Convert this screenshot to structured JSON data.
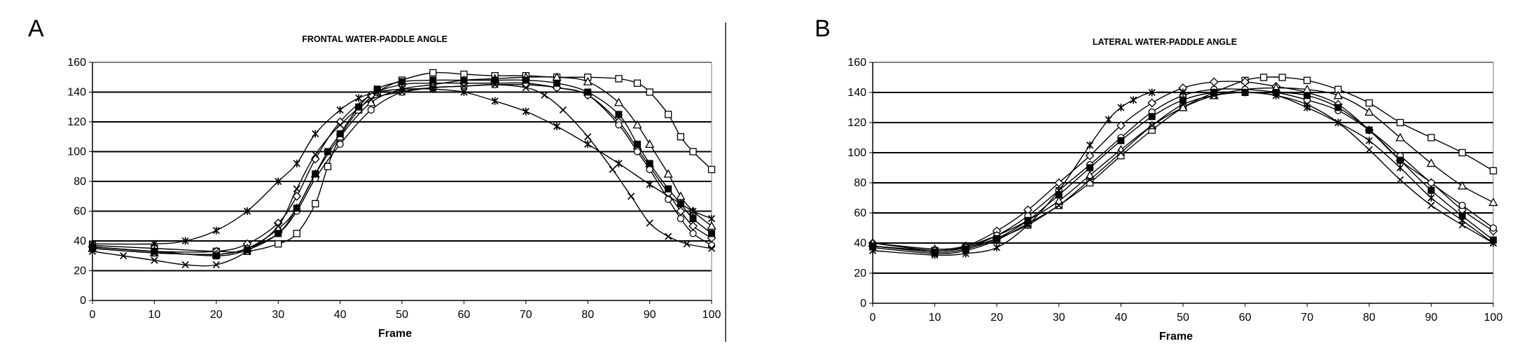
{
  "panels": [
    {
      "letter": "A",
      "chart_data": {
        "type": "line",
        "title": "FRONTAL WATER-PADDLE ANGLE",
        "xlabel": "Frame",
        "ylabel": "",
        "xlim": [
          0,
          100
        ],
        "ylim": [
          0,
          160
        ],
        "xticks": [
          0,
          10,
          20,
          30,
          40,
          50,
          60,
          70,
          80,
          90,
          100
        ],
        "yticks": [
          0,
          20,
          40,
          60,
          80,
          100,
          120,
          140,
          160
        ],
        "grid": "horizontal",
        "legend": "none",
        "series": [
          {
            "marker": "square",
            "x": [
              0,
              10,
              20,
              25,
              30,
              33,
              36,
              38,
              40,
              43,
              46,
              50,
              55,
              60,
              65,
              70,
              75,
              80,
              85,
              88,
              90,
              93,
              95,
              97,
              100
            ],
            "y": [
              37,
              35,
              33,
              33,
              38,
              45,
              65,
              90,
              110,
              128,
              140,
              148,
              153,
              152,
              151,
              151,
              150,
              150,
              149,
              146,
              140,
              125,
              110,
              100,
              88
            ]
          },
          {
            "marker": "diamond",
            "x": [
              0,
              10,
              20,
              25,
              30,
              33,
              36,
              40,
              45,
              50,
              55,
              60,
              65,
              70,
              75,
              80,
              85,
              88,
              90,
              93,
              95,
              97,
              100
            ],
            "y": [
              36,
              33,
              33,
              38,
              52,
              70,
              95,
              120,
              138,
              145,
              146,
              146,
              146,
              146,
              143,
              138,
              120,
              102,
              90,
              72,
              60,
              50,
              42
            ]
          },
          {
            "marker": "triangle",
            "x": [
              0,
              10,
              20,
              25,
              30,
              33,
              36,
              40,
              45,
              50,
              55,
              60,
              65,
              70,
              75,
              80,
              85,
              88,
              90,
              93,
              95,
              97,
              100
            ],
            "y": [
              35,
              32,
              31,
              35,
              48,
              62,
              85,
              110,
              133,
              142,
              145,
              148,
              149,
              150,
              150,
              147,
              133,
              118,
              105,
              85,
              70,
              60,
              50
            ]
          },
          {
            "marker": "circle",
            "x": [
              0,
              10,
              20,
              25,
              30,
              33,
              36,
              40,
              45,
              50,
              55,
              60,
              65,
              70,
              75,
              80,
              85,
              88,
              90,
              93,
              95,
              97,
              100
            ],
            "y": [
              35,
              32,
              31,
              35,
              45,
              60,
              82,
              105,
              128,
              140,
              143,
              144,
              145,
              145,
              143,
              138,
              118,
              100,
              88,
              68,
              55,
              45,
              37
            ]
          },
          {
            "marker": "x",
            "x": [
              0,
              5,
              10,
              15,
              20,
              25,
              30,
              33,
              36,
              40,
              45,
              50,
              55,
              60,
              65,
              70,
              73,
              76,
              80,
              84,
              87,
              90,
              93,
              96,
              100
            ],
            "y": [
              33,
              30,
              27,
              24,
              24,
              33,
              50,
              75,
              98,
              118,
              135,
              140,
              143,
              144,
              145,
              143,
              138,
              128,
              110,
              88,
              70,
              52,
              43,
              38,
              35
            ]
          },
          {
            "marker": "star",
            "x": [
              0,
              10,
              15,
              20,
              25,
              30,
              33,
              36,
              40,
              43,
              46,
              50,
              55,
              60,
              65,
              70,
              75,
              80,
              85,
              90,
              95,
              97,
              100
            ],
            "y": [
              38,
              38,
              40,
              47,
              60,
              80,
              92,
              112,
              128,
              136,
              140,
              142,
              142,
              140,
              134,
              127,
              117,
              105,
              92,
              78,
              65,
              60,
              55
            ]
          },
          {
            "marker": "filled-square",
            "x": [
              0,
              10,
              20,
              25,
              30,
              33,
              36,
              38,
              40,
              43,
              46,
              50,
              55,
              60,
              65,
              70,
              75,
              80,
              85,
              88,
              90,
              93,
              95,
              97,
              100
            ],
            "y": [
              36,
              33,
              30,
              34,
              45,
              62,
              85,
              100,
              112,
              130,
              142,
              147,
              148,
              148,
              148,
              148,
              146,
              140,
              125,
              105,
              92,
              75,
              65,
              55,
              45
            ]
          }
        ]
      }
    },
    {
      "letter": "B",
      "chart_data": {
        "type": "line",
        "title": "LATERAL WATER-PADDLE ANGLE",
        "xlabel": "Frame",
        "ylabel": "",
        "xlim": [
          0,
          100
        ],
        "ylim": [
          0,
          160
        ],
        "xticks": [
          0,
          10,
          20,
          30,
          40,
          50,
          60,
          70,
          80,
          90,
          100
        ],
        "yticks": [
          0,
          20,
          40,
          60,
          80,
          100,
          120,
          140,
          160
        ],
        "grid": "horizontal",
        "legend": "none",
        "series": [
          {
            "marker": "square",
            "x": [
              0,
              10,
              15,
              20,
              25,
              30,
              35,
              40,
              45,
              50,
              55,
              60,
              63,
              66,
              70,
              75,
              80,
              85,
              90,
              95,
              100
            ],
            "y": [
              38,
              35,
              37,
              43,
              52,
              65,
              80,
              98,
              115,
              130,
              140,
              148,
              150,
              150,
              148,
              142,
              133,
              120,
              110,
              100,
              88
            ]
          },
          {
            "marker": "diamond",
            "x": [
              0,
              10,
              15,
              20,
              25,
              30,
              35,
              40,
              45,
              50,
              55,
              60,
              65,
              70,
              75,
              80,
              85,
              90,
              95,
              100
            ],
            "y": [
              40,
              35,
              38,
              48,
              62,
              80,
              98,
              118,
              133,
              143,
              147,
              147,
              144,
              140,
              132,
              115,
              95,
              80,
              62,
              48
            ]
          },
          {
            "marker": "triangle",
            "x": [
              0,
              10,
              15,
              20,
              25,
              30,
              35,
              40,
              45,
              50,
              55,
              60,
              65,
              70,
              75,
              80,
              85,
              90,
              95,
              100
            ],
            "y": [
              40,
              36,
              38,
              45,
              55,
              68,
              85,
              102,
              118,
              130,
              138,
              142,
              143,
              142,
              138,
              127,
              110,
              93,
              78,
              67
            ]
          },
          {
            "marker": "circle",
            "x": [
              0,
              10,
              15,
              20,
              25,
              30,
              35,
              40,
              45,
              50,
              55,
              60,
              65,
              70,
              75,
              80,
              85,
              90,
              95,
              100
            ],
            "y": [
              38,
              35,
              37,
              45,
              58,
              75,
              92,
              110,
              127,
              138,
              142,
              142,
              140,
              135,
              128,
              115,
              98,
              80,
              65,
              50
            ]
          },
          {
            "marker": "x",
            "x": [
              0,
              10,
              15,
              20,
              25,
              30,
              35,
              40,
              45,
              50,
              55,
              60,
              65,
              70,
              75,
              80,
              85,
              90,
              95,
              100
            ],
            "y": [
              37,
              33,
              35,
              42,
              53,
              65,
              82,
              100,
              118,
              132,
              138,
              140,
              138,
              132,
              120,
              102,
              82,
              65,
              52,
              40
            ]
          },
          {
            "marker": "star",
            "x": [
              0,
              10,
              15,
              20,
              25,
              30,
              35,
              38,
              40,
              42,
              45,
              50,
              55,
              60,
              65,
              70,
              75,
              80,
              85,
              90,
              95,
              100
            ],
            "y": [
              35,
              32,
              33,
              37,
              52,
              75,
              105,
              122,
              130,
              135,
              140,
              140,
              140,
              140,
              138,
              130,
              120,
              108,
              90,
              70,
              55,
              40
            ]
          },
          {
            "marker": "filled-square",
            "x": [
              0,
              10,
              15,
              20,
              25,
              30,
              35,
              40,
              45,
              50,
              55,
              60,
              65,
              70,
              75,
              80,
              85,
              90,
              95,
              100
            ],
            "y": [
              38,
              34,
              36,
              43,
              55,
              72,
              90,
              108,
              124,
              135,
              140,
              140,
              140,
              138,
              130,
              115,
              95,
              75,
              58,
              42
            ]
          }
        ]
      }
    }
  ]
}
